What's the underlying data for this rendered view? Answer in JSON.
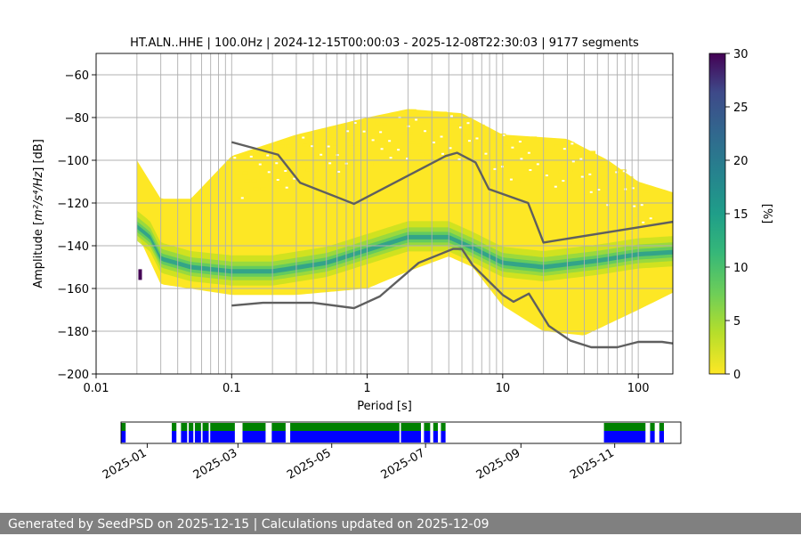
{
  "chart_data": {
    "type": "heatmap",
    "title": "HT.ALN..HHE | 100.0Hz | 2024-12-15T00:00:03 - 2025-12-08T22:30:03 | 9177 segments",
    "xlabel": "Period [s]",
    "ylabel_prefix": "Amplitude [",
    "ylabel_math": "m²/s⁴/Hz",
    "ylabel_suffix": "] [dB]",
    "xscale": "log",
    "xlim": [
      0.01,
      180
    ],
    "ylim": [
      -200,
      -50
    ],
    "xticks": [
      {
        "value": 0.01,
        "label": "0.01"
      },
      {
        "value": 0.1,
        "label": "0.1"
      },
      {
        "value": 1,
        "label": "1"
      },
      {
        "value": 10,
        "label": "10"
      },
      {
        "value": 100,
        "label": "100"
      }
    ],
    "yticks": [
      {
        "value": -200,
        "label": "−200"
      },
      {
        "value": -180,
        "label": "−180"
      },
      {
        "value": -160,
        "label": "−160"
      },
      {
        "value": -140,
        "label": "−140"
      },
      {
        "value": -120,
        "label": "−120"
      },
      {
        "value": -100,
        "label": "−100"
      },
      {
        "value": -80,
        "label": "−80"
      },
      {
        "value": -60,
        "label": "−60"
      }
    ],
    "grid": true,
    "colormap": "viridis_r",
    "colorbar": {
      "label": "[%]",
      "range": [
        0,
        30
      ],
      "ticks": [
        {
          "value": 0,
          "label": "0"
        },
        {
          "value": 5,
          "label": "5"
        },
        {
          "value": 10,
          "label": "10"
        },
        {
          "value": 15,
          "label": "15"
        },
        {
          "value": 20,
          "label": "20"
        },
        {
          "value": 25,
          "label": "25"
        },
        {
          "value": 30,
          "label": "30"
        }
      ]
    },
    "density": {
      "period_range": [
        0.02,
        180
      ],
      "mode_db": [
        {
          "x": 0.02,
          "y": -131
        },
        {
          "x": 0.025,
          "y": -136
        },
        {
          "x": 0.03,
          "y": -146
        },
        {
          "x": 0.05,
          "y": -150
        },
        {
          "x": 0.1,
          "y": -152
        },
        {
          "x": 0.2,
          "y": -152
        },
        {
          "x": 0.5,
          "y": -148
        },
        {
          "x": 1,
          "y": -142
        },
        {
          "x": 2,
          "y": -136
        },
        {
          "x": 4,
          "y": -136
        },
        {
          "x": 6,
          "y": -141
        },
        {
          "x": 10,
          "y": -148
        },
        {
          "x": 20,
          "y": -150
        },
        {
          "x": 50,
          "y": -147
        },
        {
          "x": 100,
          "y": -144
        },
        {
          "x": 180,
          "y": -143
        }
      ],
      "upper_db": [
        {
          "x": 0.02,
          "y": -100
        },
        {
          "x": 0.03,
          "y": -118
        },
        {
          "x": 0.05,
          "y": -118
        },
        {
          "x": 0.1,
          "y": -98
        },
        {
          "x": 0.3,
          "y": -88
        },
        {
          "x": 1,
          "y": -80
        },
        {
          "x": 2,
          "y": -76
        },
        {
          "x": 5,
          "y": -78
        },
        {
          "x": 10,
          "y": -88
        },
        {
          "x": 30,
          "y": -90
        },
        {
          "x": 60,
          "y": -100
        },
        {
          "x": 100,
          "y": -110
        },
        {
          "x": 180,
          "y": -115
        }
      ],
      "lower_db": [
        {
          "x": 0.02,
          "y": -134
        },
        {
          "x": 0.03,
          "y": -158
        },
        {
          "x": 0.1,
          "y": -163
        },
        {
          "x": 0.3,
          "y": -163
        },
        {
          "x": 1,
          "y": -160
        },
        {
          "x": 2,
          "y": -152
        },
        {
          "x": 4,
          "y": -145
        },
        {
          "x": 6,
          "y": -150
        },
        {
          "x": 10,
          "y": -168
        },
        {
          "x": 20,
          "y": -180
        },
        {
          "x": 40,
          "y": -182
        },
        {
          "x": 100,
          "y": -170
        },
        {
          "x": 180,
          "y": -162
        }
      ]
    },
    "series": [
      {
        "values": [
          {
            "x": 0.1,
            "y": -91.5
          },
          {
            "x": 0.22,
            "y": -97.4
          },
          {
            "x": 0.32,
            "y": -110.5
          },
          {
            "x": 0.8,
            "y": -120.4
          },
          {
            "x": 3.8,
            "y": -98.0
          },
          {
            "x": 4.6,
            "y": -96.5
          },
          {
            "x": 6.3,
            "y": -101.0
          },
          {
            "x": 7.9,
            "y": -113.5
          },
          {
            "x": 15.4,
            "y": -120.0
          },
          {
            "x": 20,
            "y": -138.5
          },
          {
            "x": 180,
            "y": -128.8
          }
        ]
      },
      {
        "values": [
          {
            "x": 0.1,
            "y": -168.0
          },
          {
            "x": 0.17,
            "y": -166.7
          },
          {
            "x": 0.4,
            "y": -166.7
          },
          {
            "x": 0.8,
            "y": -169.2
          },
          {
            "x": 1.24,
            "y": -163.7
          },
          {
            "x": 2.4,
            "y": -148.0
          },
          {
            "x": 4.3,
            "y": -141.5
          },
          {
            "x": 5.0,
            "y": -141.5
          },
          {
            "x": 6.0,
            "y": -149.1
          },
          {
            "x": 10.0,
            "y": -163.0
          },
          {
            "x": 12.0,
            "y": -166.2
          },
          {
            "x": 15.6,
            "y": -162.4
          },
          {
            "x": 21.9,
            "y": -177.5
          },
          {
            "x": 31.6,
            "y": -184.4
          },
          {
            "x": 45,
            "y": -187.5
          },
          {
            "x": 70,
            "y": -187.5
          },
          {
            "x": 100,
            "y": -185.0
          },
          {
            "x": 150,
            "y": -185.0
          },
          {
            "x": 180,
            "y": -185.7
          }
        ]
      }
    ],
    "availability": {
      "date_range": [
        "2024-12-15",
        "2025-12-08"
      ],
      "xticks": [
        {
          "value": "2025-01-01",
          "label": "2025-01"
        },
        {
          "value": "2025-03-01",
          "label": "2025-03"
        },
        {
          "value": "2025-05-01",
          "label": "2025-05"
        },
        {
          "value": "2025-07-01",
          "label": "2025-07"
        },
        {
          "value": "2025-09-01",
          "label": "2025-09"
        },
        {
          "value": "2025-11-01",
          "label": "2025-11"
        }
      ],
      "coverage_color": "#008000",
      "data_color": "#0000ff",
      "segments": [
        {
          "start": "2024-12-15",
          "end": "2024-12-18"
        },
        {
          "start": "2025-01-17",
          "end": "2025-01-20"
        },
        {
          "start": "2025-01-23",
          "end": "2025-01-27"
        },
        {
          "start": "2025-01-28",
          "end": "2025-01-31"
        },
        {
          "start": "2025-02-01",
          "end": "2025-02-05"
        },
        {
          "start": "2025-02-06",
          "end": "2025-02-10"
        },
        {
          "start": "2025-02-11",
          "end": "2025-02-27"
        },
        {
          "start": "2025-03-04",
          "end": "2025-03-19"
        },
        {
          "start": "2025-03-23",
          "end": "2025-04-01"
        },
        {
          "start": "2025-04-04",
          "end": "2025-06-14"
        },
        {
          "start": "2025-06-15",
          "end": "2025-06-28"
        },
        {
          "start": "2025-06-30",
          "end": "2025-07-04"
        },
        {
          "start": "2025-07-06",
          "end": "2025-07-09"
        },
        {
          "start": "2025-07-11",
          "end": "2025-07-14"
        },
        {
          "start": "2025-10-25",
          "end": "2025-11-21"
        },
        {
          "start": "2025-11-24",
          "end": "2025-11-27"
        },
        {
          "start": "2025-11-30",
          "end": "2025-12-03"
        }
      ]
    }
  },
  "footer": {
    "text": "Generated by SeedPSD on 2025-12-15 | Calculations updated on 2025-12-09"
  }
}
